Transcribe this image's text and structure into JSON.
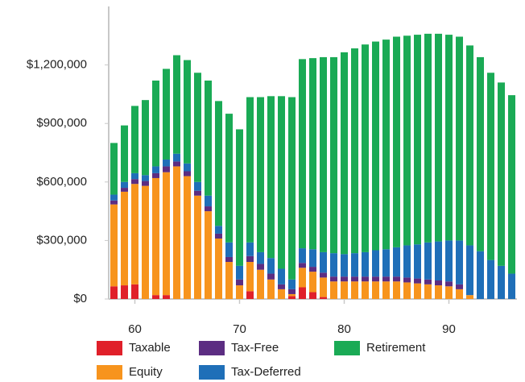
{
  "chart_data": {
    "type": "bar",
    "stacked": true,
    "x": [
      58,
      59,
      60,
      61,
      62,
      63,
      64,
      65,
      66,
      67,
      68,
      69,
      70,
      71,
      72,
      73,
      74,
      75,
      76,
      77,
      78,
      79,
      80,
      81,
      82,
      83,
      84,
      85,
      86,
      87,
      88,
      89,
      90,
      91,
      92,
      93,
      94,
      95,
      96
    ],
    "series": [
      {
        "name": "Taxable",
        "color": "#e0202a",
        "values": [
          65000,
          70000,
          75000,
          0,
          20000,
          20000,
          0,
          0,
          0,
          0,
          0,
          0,
          0,
          40000,
          0,
          0,
          0,
          15000,
          60000,
          35000,
          10000,
          0,
          0,
          0,
          0,
          0,
          0,
          0,
          0,
          0,
          0,
          0,
          0,
          0,
          0,
          0,
          0,
          0,
          0
        ]
      },
      {
        "name": "Equity",
        "color": "#f7941d",
        "values": [
          420000,
          480000,
          515000,
          580000,
          600000,
          630000,
          680000,
          630000,
          530000,
          450000,
          310000,
          190000,
          70000,
          150000,
          150000,
          100000,
          50000,
          10000,
          100000,
          105000,
          100000,
          90000,
          90000,
          90000,
          90000,
          90000,
          90000,
          90000,
          85000,
          80000,
          75000,
          70000,
          65000,
          50000,
          20000,
          0,
          0,
          0,
          0
        ]
      },
      {
        "name": "Tax-Free",
        "color": "#5c2d82",
        "values": [
          20000,
          20000,
          25000,
          25000,
          25000,
          30000,
          25000,
          25000,
          25000,
          25000,
          25000,
          25000,
          30000,
          30000,
          30000,
          30000,
          25000,
          25000,
          25000,
          25000,
          25000,
          25000,
          25000,
          25000,
          25000,
          25000,
          25000,
          25000,
          25000,
          25000,
          25000,
          25000,
          25000,
          25000,
          0,
          0,
          0,
          0,
          0
        ]
      },
      {
        "name": "Tax-Deferred",
        "color": "#1f6fb8",
        "values": [
          30000,
          30000,
          30000,
          30000,
          35000,
          35000,
          40000,
          40000,
          45000,
          55000,
          40000,
          75000,
          70000,
          70000,
          60000,
          80000,
          80000,
          50000,
          75000,
          90000,
          105000,
          120000,
          115000,
          120000,
          125000,
          135000,
          140000,
          150000,
          165000,
          175000,
          190000,
          200000,
          210000,
          225000,
          255000,
          245000,
          200000,
          170000,
          130000
        ]
      },
      {
        "name": "Retirement",
        "color": "#1aaa55",
        "values": [
          265000,
          290000,
          345000,
          385000,
          440000,
          465000,
          505000,
          530000,
          560000,
          590000,
          640000,
          660000,
          700000,
          745000,
          795000,
          830000,
          885000,
          935000,
          970000,
          980000,
          1000000,
          1005000,
          1035000,
          1050000,
          1065000,
          1070000,
          1075000,
          1080000,
          1075000,
          1075000,
          1070000,
          1065000,
          1055000,
          1045000,
          1025000,
          995000,
          960000,
          940000,
          915000
        ]
      }
    ],
    "xlim": [
      57.5,
      96.5
    ],
    "xticks": [
      60,
      70,
      80,
      90
    ],
    "ylim": [
      0,
      1500000
    ],
    "yticks": [
      {
        "value": 0,
        "label": "$0"
      },
      {
        "value": 300000,
        "label": "$300,000"
      },
      {
        "value": 600000,
        "label": "$600,000"
      },
      {
        "value": 900000,
        "label": "$900,000"
      },
      {
        "value": 1200000,
        "label": "$1,200,000"
      }
    ],
    "legend": "bottom"
  }
}
